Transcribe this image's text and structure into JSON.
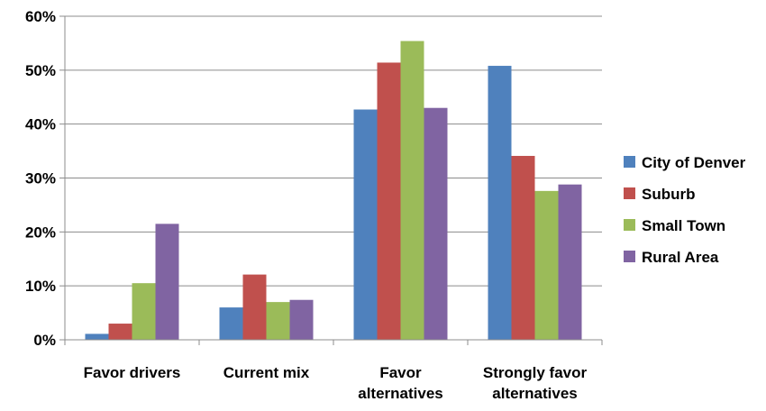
{
  "chart_data": {
    "type": "bar",
    "categories": [
      [
        "Favor drivers"
      ],
      [
        "Current mix"
      ],
      [
        "Favor",
        "alternatives"
      ],
      [
        "Strongly favor",
        "alternatives"
      ]
    ],
    "series": [
      {
        "name": "City of Denver",
        "color": "#4F81BD",
        "values": [
          1.1,
          6.0,
          42.7,
          50.8
        ]
      },
      {
        "name": "Suburb",
        "color": "#C0504D",
        "values": [
          3.0,
          12.1,
          51.4,
          34.1
        ]
      },
      {
        "name": "Small Town",
        "color": "#9BBB59",
        "values": [
          10.5,
          7.0,
          55.4,
          27.6
        ]
      },
      {
        "name": "Rural Area",
        "color": "#8064A2",
        "values": [
          21.5,
          7.4,
          43.0,
          28.8
        ]
      }
    ],
    "yticks": [
      "0%",
      "10%",
      "20%",
      "30%",
      "40%",
      "50%",
      "60%"
    ],
    "ylim": [
      0,
      60
    ],
    "grid": true,
    "legend_position": "right"
  }
}
